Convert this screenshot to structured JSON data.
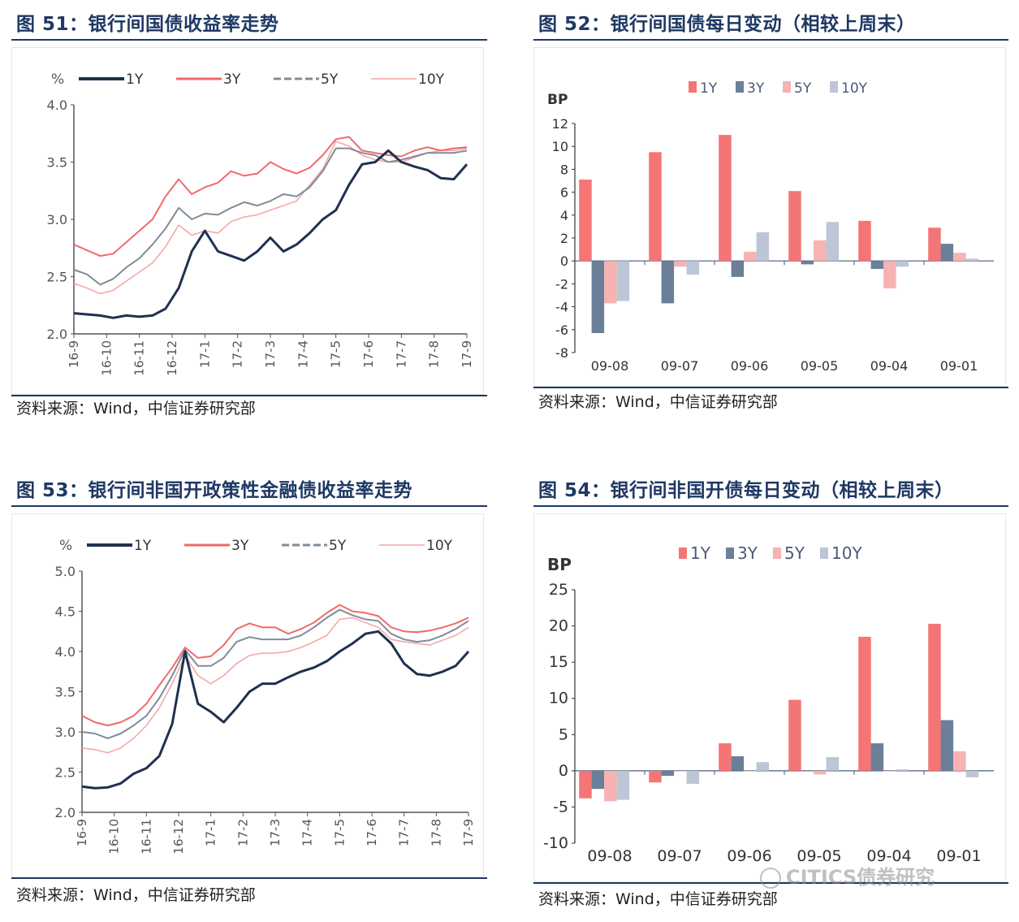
{
  "figures": [
    {
      "title": "图 51：银行间国债收益率走势",
      "source": "资料来源：Wind，中信证券研究部"
    },
    {
      "title": "图 52：银行间国债每日变动（相较上周末）",
      "source": "资料来源：Wind，中信证券研究部"
    },
    {
      "title": "图 53：银行间非国开政策性金融债收益率走势",
      "source": "资料来源：Wind，中信证券研究部"
    },
    {
      "title": "图 54：银行间非国开债每日变动（相较上周末）",
      "source": "资料来源：Wind，中信证券研究部"
    }
  ],
  "watermark": "CITICS债券研究",
  "colors": {
    "1Y": "#1f3050",
    "3Y": "#f06a6a",
    "5Y": "#7f8c99",
    "10Y": "#f5a3a3",
    "bar1Y": "#f47575",
    "bar3Y": "#6b7f99",
    "bar5Y": "#f7b2b2",
    "bar10Y": "#bcc6d6"
  },
  "chart_data": [
    {
      "type": "line",
      "ylabel": "%",
      "ylim": [
        2.0,
        4.0
      ],
      "yticks": [
        "4.0",
        "3.5",
        "3.0",
        "2.5",
        "2.0"
      ],
      "xticks": [
        "16-9",
        "16-10",
        "16-11",
        "16-12",
        "17-1",
        "17-2",
        "17-3",
        "17-4",
        "17-5",
        "17-6",
        "17-7",
        "17-8",
        "17-9"
      ],
      "grid": false,
      "legend": "top",
      "series": [
        {
          "name": "1Y",
          "values": [
            2.18,
            2.17,
            2.16,
            2.14,
            2.16,
            2.15,
            2.16,
            2.22,
            2.4,
            2.72,
            2.9,
            2.72,
            2.68,
            2.64,
            2.72,
            2.84,
            2.72,
            2.78,
            2.88,
            3.0,
            3.08,
            3.3,
            3.48,
            3.5,
            3.6,
            3.5,
            3.46,
            3.43,
            3.36,
            3.35,
            3.48
          ]
        },
        {
          "name": "3Y",
          "values": [
            2.78,
            2.73,
            2.68,
            2.7,
            2.8,
            2.9,
            3.0,
            3.2,
            3.35,
            3.22,
            3.28,
            3.32,
            3.42,
            3.38,
            3.4,
            3.5,
            3.44,
            3.4,
            3.45,
            3.56,
            3.7,
            3.72,
            3.6,
            3.58,
            3.56,
            3.55,
            3.6,
            3.63,
            3.6,
            3.62,
            3.63
          ]
        },
        {
          "name": "5Y",
          "values": [
            2.56,
            2.52,
            2.43,
            2.48,
            2.58,
            2.66,
            2.78,
            2.92,
            3.1,
            3.0,
            3.05,
            3.04,
            3.1,
            3.15,
            3.12,
            3.16,
            3.22,
            3.2,
            3.28,
            3.42,
            3.62,
            3.62,
            3.58,
            3.56,
            3.5,
            3.52,
            3.55,
            3.58,
            3.58,
            3.58,
            3.6
          ]
        },
        {
          "name": "10Y",
          "values": [
            2.44,
            2.4,
            2.35,
            2.38,
            2.46,
            2.54,
            2.62,
            2.76,
            2.95,
            2.86,
            2.9,
            2.88,
            2.98,
            3.02,
            3.04,
            3.08,
            3.12,
            3.16,
            3.3,
            3.44,
            3.68,
            3.64,
            3.56,
            3.52,
            3.5,
            3.5,
            3.54,
            3.58,
            3.6,
            3.6,
            3.62
          ]
        }
      ]
    },
    {
      "type": "bar",
      "ylabel": "BP",
      "ylim": [
        -8,
        12
      ],
      "yticks": [
        "12",
        "10",
        "8",
        "6",
        "4",
        "2",
        "0",
        "-2",
        "-4",
        "-6",
        "-8"
      ],
      "categories": [
        "09-08",
        "09-07",
        "09-06",
        "09-05",
        "09-04",
        "09-01"
      ],
      "legend": "top",
      "series": [
        {
          "name": "1Y",
          "values": [
            7.1,
            9.5,
            11.0,
            6.1,
            3.5,
            2.9
          ]
        },
        {
          "name": "3Y",
          "values": [
            -6.3,
            -3.7,
            -1.4,
            -0.3,
            -0.7,
            1.5
          ]
        },
        {
          "name": "5Y",
          "values": [
            -3.7,
            -0.5,
            0.8,
            1.8,
            -2.4,
            0.7
          ]
        },
        {
          "name": "10Y",
          "values": [
            -3.5,
            -1.2,
            2.5,
            3.4,
            -0.5,
            0.2
          ]
        }
      ]
    },
    {
      "type": "line",
      "ylabel": "%",
      "ylim": [
        2.0,
        5.0
      ],
      "yticks": [
        "5.0",
        "4.5",
        "4.0",
        "3.5",
        "3.0",
        "2.5",
        "2.0"
      ],
      "xticks": [
        "16-9",
        "16-10",
        "16-11",
        "16-12",
        "17-1",
        "17-2",
        "17-3",
        "17-4",
        "17-5",
        "17-6",
        "17-7",
        "17-8",
        "17-9"
      ],
      "grid": false,
      "legend": "top",
      "series": [
        {
          "name": "1Y",
          "values": [
            2.32,
            2.3,
            2.31,
            2.36,
            2.48,
            2.55,
            2.7,
            3.1,
            4.0,
            3.35,
            3.25,
            3.12,
            3.3,
            3.5,
            3.6,
            3.6,
            3.68,
            3.75,
            3.8,
            3.88,
            4.0,
            4.1,
            4.22,
            4.25,
            4.1,
            3.85,
            3.72,
            3.7,
            3.75,
            3.82,
            4.0
          ]
        },
        {
          "name": "3Y",
          "values": [
            3.2,
            3.12,
            3.08,
            3.12,
            3.2,
            3.35,
            3.58,
            3.8,
            4.05,
            3.92,
            3.94,
            4.08,
            4.28,
            4.35,
            4.3,
            4.3,
            4.22,
            4.28,
            4.36,
            4.48,
            4.58,
            4.5,
            4.48,
            4.44,
            4.3,
            4.25,
            4.24,
            4.26,
            4.3,
            4.35,
            4.42
          ]
        },
        {
          "name": "5Y",
          "values": [
            3.0,
            2.98,
            2.92,
            2.98,
            3.08,
            3.2,
            3.42,
            3.7,
            4.02,
            3.82,
            3.82,
            3.92,
            4.12,
            4.18,
            4.15,
            4.15,
            4.15,
            4.2,
            4.3,
            4.42,
            4.52,
            4.45,
            4.4,
            4.38,
            4.22,
            4.15,
            4.12,
            4.14,
            4.2,
            4.28,
            4.38
          ]
        },
        {
          "name": "10Y",
          "values": [
            2.8,
            2.78,
            2.74,
            2.8,
            2.92,
            3.08,
            3.3,
            3.6,
            3.95,
            3.7,
            3.6,
            3.7,
            3.85,
            3.95,
            3.98,
            3.98,
            4.0,
            4.05,
            4.12,
            4.2,
            4.4,
            4.42,
            4.36,
            4.3,
            4.15,
            4.12,
            4.1,
            4.08,
            4.14,
            4.2,
            4.3
          ]
        }
      ]
    },
    {
      "type": "bar",
      "ylabel": "BP",
      "ylim": [
        -10,
        25
      ],
      "yticks": [
        "25",
        "20",
        "15",
        "10",
        "5",
        "0",
        "-5",
        "-10"
      ],
      "categories": [
        "09-08",
        "09-07",
        "09-06",
        "09-05",
        "09-04",
        "09-01"
      ],
      "legend": "top",
      "series": [
        {
          "name": "1Y",
          "values": [
            -3.8,
            -1.6,
            3.8,
            9.8,
            18.5,
            20.3
          ]
        },
        {
          "name": "3Y",
          "values": [
            -2.5,
            -0.7,
            2.0,
            0.0,
            3.8,
            7.0
          ]
        },
        {
          "name": "5Y",
          "values": [
            -4.2,
            0.0,
            0.0,
            -0.5,
            0.0,
            2.7
          ]
        },
        {
          "name": "10Y",
          "values": [
            -4.0,
            -1.8,
            1.2,
            1.9,
            0.2,
            -0.9
          ]
        }
      ]
    }
  ]
}
